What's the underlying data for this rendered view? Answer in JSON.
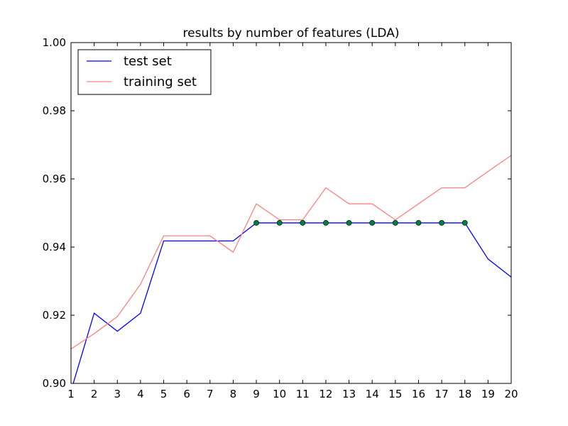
{
  "chart_data": {
    "type": "line",
    "title": "results by number of features (LDA)",
    "xlabel": "",
    "ylabel": "",
    "x": [
      1,
      2,
      3,
      4,
      5,
      6,
      7,
      8,
      9,
      10,
      11,
      12,
      13,
      14,
      15,
      16,
      17,
      18,
      19,
      20
    ],
    "xlim": [
      1,
      20
    ],
    "ylim": [
      0.9,
      1.0
    ],
    "xticks": [
      1,
      2,
      3,
      4,
      5,
      6,
      7,
      8,
      9,
      10,
      11,
      12,
      13,
      14,
      15,
      16,
      17,
      18,
      19,
      20
    ],
    "xtick_labels": [
      "1",
      "2",
      "3",
      "4",
      "5",
      "6",
      "7",
      "8",
      "9",
      "10",
      "11",
      "12",
      "13",
      "14",
      "15",
      "16",
      "17",
      "18",
      "19",
      "20"
    ],
    "yticks": [
      0.9,
      0.92,
      0.94,
      0.96,
      0.98,
      1.0
    ],
    "ytick_labels": [
      "0.90",
      "0.92",
      "0.94",
      "0.96",
      "0.98",
      "1.00"
    ],
    "grid": false,
    "legend_position": "top-left",
    "series": [
      {
        "name": "test set",
        "color": "#0000ff",
        "values": [
          0.8978,
          0.9206,
          0.9153,
          0.9206,
          0.9418,
          0.9418,
          0.9418,
          0.9418,
          0.9471,
          0.9471,
          0.9471,
          0.9471,
          0.9471,
          0.9471,
          0.9471,
          0.9471,
          0.9471,
          0.9471,
          0.9365,
          0.9312
        ]
      },
      {
        "name": "training set",
        "color": "#ff8080",
        "values": [
          0.9101,
          0.9146,
          0.9196,
          0.9291,
          0.9433,
          0.9433,
          0.9433,
          0.9385,
          0.9527,
          0.948,
          0.948,
          0.9574,
          0.9527,
          0.9527,
          0.948,
          0.9527,
          0.9574,
          0.9574,
          0.9622,
          0.9669
        ]
      }
    ],
    "markers": {
      "color": "#007f3f",
      "x": [
        9,
        10,
        11,
        12,
        13,
        14,
        15,
        16,
        17,
        18
      ],
      "values": [
        0.9471,
        0.9471,
        0.9471,
        0.9471,
        0.9471,
        0.9471,
        0.9471,
        0.9471,
        0.9471,
        0.9471
      ]
    }
  }
}
